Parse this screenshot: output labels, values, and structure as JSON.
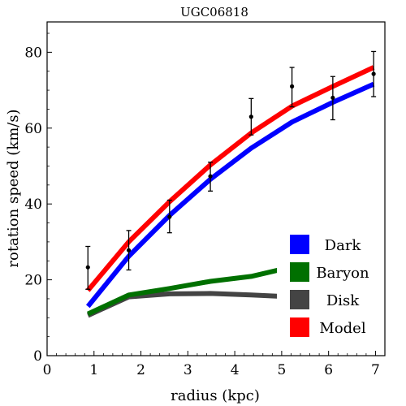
{
  "chart_data": {
    "type": "line",
    "title": "UGC06818",
    "xlabel": "radius (kpc)",
    "ylabel": "rotation speed (km/s)",
    "xlim": [
      0,
      7.2
    ],
    "ylim": [
      0,
      88
    ],
    "x_ticks": [
      0,
      1,
      2,
      3,
      4,
      5,
      6,
      7
    ],
    "y_ticks": [
      0,
      20,
      40,
      60,
      80
    ],
    "grid": false,
    "legend_position": "bottom-right",
    "series": [
      {
        "name": "Dark",
        "color": "#0000ff",
        "x": [
          0.87,
          1.74,
          2.61,
          3.48,
          4.35,
          5.22,
          6.09,
          6.96
        ],
        "y": [
          13.0,
          26.2,
          37.0,
          46.5,
          54.7,
          61.6,
          66.8,
          71.6
        ]
      },
      {
        "name": "Baryon",
        "color": "#007000",
        "x": [
          0.87,
          1.74,
          2.61,
          3.48,
          4.35,
          5.22,
          6.09,
          6.96
        ],
        "y": [
          11.0,
          16.0,
          17.7,
          19.6,
          20.9,
          23.4,
          24.2,
          25.0
        ]
      },
      {
        "name": "Disk",
        "color": "#444444",
        "x": [
          0.87,
          1.74,
          2.61,
          3.48,
          4.35,
          5.22,
          6.09,
          6.96
        ],
        "y": [
          10.6,
          15.5,
          16.3,
          16.4,
          16.0,
          15.5,
          14.8,
          13.9
        ]
      },
      {
        "name": "Model",
        "color": "#ff0000",
        "x": [
          0.87,
          1.74,
          2.61,
          3.48,
          4.35,
          5.22,
          6.09,
          6.96
        ],
        "y": [
          17.2,
          30.0,
          40.6,
          50.3,
          58.7,
          65.8,
          71.0,
          76.0
        ]
      }
    ],
    "observations": {
      "x": [
        0.87,
        1.74,
        2.61,
        3.48,
        4.35,
        5.22,
        6.09,
        6.96
      ],
      "y": [
        23.3,
        27.8,
        36.6,
        47.3,
        63.0,
        71.0,
        68.0,
        74.3
      ],
      "err_low": [
        17.5,
        22.6,
        32.4,
        43.4,
        58.2,
        65.6,
        62.2,
        68.3
      ],
      "err_high": [
        28.8,
        33.0,
        41.0,
        51.0,
        67.8,
        76.0,
        73.6,
        80.2
      ]
    }
  }
}
